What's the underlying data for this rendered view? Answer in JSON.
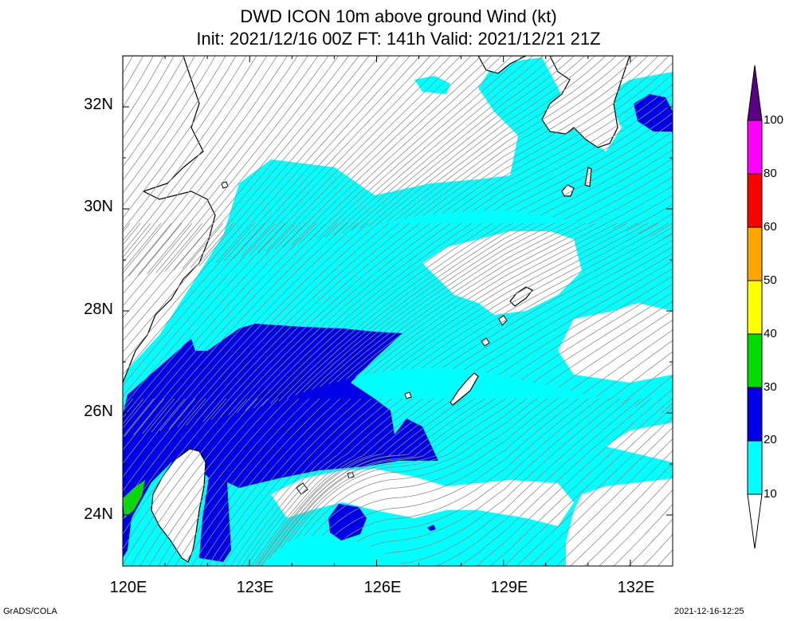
{
  "title": {
    "line1": "DWD ICON 10m above ground Wind (kt)",
    "line2": "Init: 2021/12/16 00Z  FT: 141h  Valid: 2021/12/21 21Z"
  },
  "axes": {
    "lat_labels": [
      "32N",
      "30N",
      "28N",
      "26N",
      "24N"
    ],
    "lon_labels": [
      "120E",
      "123E",
      "126E",
      "129E",
      "132E"
    ],
    "lat_range": [
      23,
      33
    ],
    "lon_range": [
      120,
      133
    ]
  },
  "colorbar": {
    "labels": [
      "10",
      "20",
      "30",
      "40",
      "50",
      "60",
      "80",
      "100"
    ],
    "colors": [
      "#ffffff",
      "#00ffff",
      "#0000e6",
      "#00dc00",
      "#ffff00",
      "#ffa500",
      "#ff0000",
      "#ff00ff",
      "#5a0082"
    ]
  },
  "footer": {
    "left": "GrADS/COLA",
    "right": "2021-12-16-12:25"
  },
  "colors": {
    "cyan": "#00ffff",
    "blue": "#0000e6",
    "green": "#00dc00",
    "streamline": "#8c8c8c",
    "coast": "#000000"
  }
}
